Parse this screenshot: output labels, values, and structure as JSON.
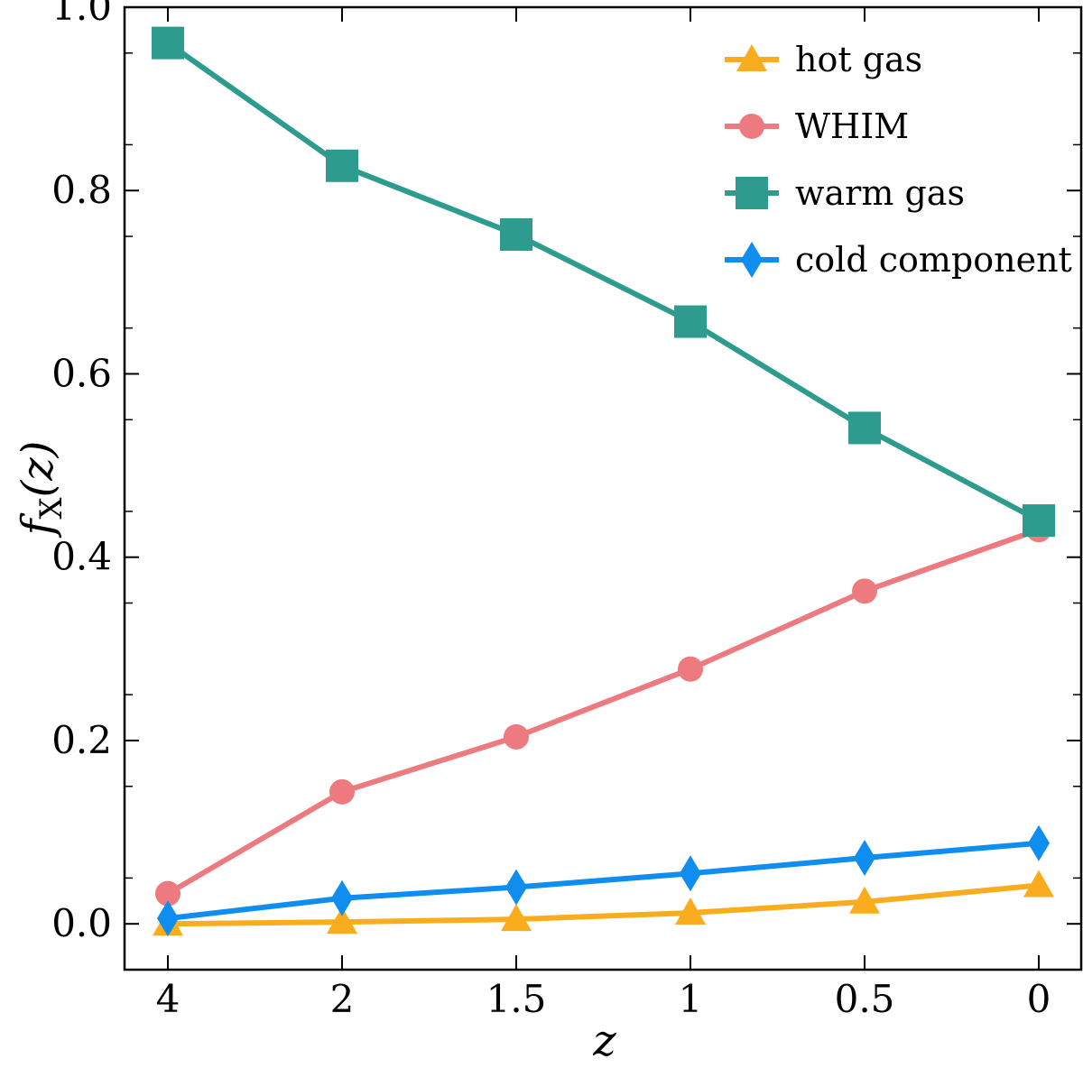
{
  "chart_data": {
    "type": "line",
    "categories": [
      "4",
      "2",
      "1.5",
      "1",
      "0.5",
      "0"
    ],
    "xlabel": "z",
    "ylabel": "f",
    "ylabel_sub": "X",
    "ylabel_arg": "(z)",
    "ylim": [
      -0.05,
      1.0
    ],
    "yticks": [
      "0.0",
      "0.2",
      "0.4",
      "0.6",
      "0.8",
      "1.0"
    ],
    "legend_position": "top-right",
    "grid": false,
    "series": [
      {
        "name": "hot gas",
        "marker": "triangle",
        "color": "#f9ad1e",
        "values": [
          0.0,
          0.002,
          0.005,
          0.012,
          0.024,
          0.042
        ]
      },
      {
        "name": "WHIM",
        "marker": "circle",
        "color": "#ed7a7f",
        "values": [
          0.033,
          0.144,
          0.204,
          0.278,
          0.363,
          0.43
        ]
      },
      {
        "name": "warm gas",
        "marker": "square",
        "color": "#2d9c8e",
        "values": [
          0.961,
          0.827,
          0.752,
          0.657,
          0.541,
          0.44
        ]
      },
      {
        "name": "cold component",
        "marker": "diamond",
        "color": "#0f8ef0",
        "values": [
          0.006,
          0.028,
          0.04,
          0.055,
          0.072,
          0.088
        ]
      }
    ]
  }
}
